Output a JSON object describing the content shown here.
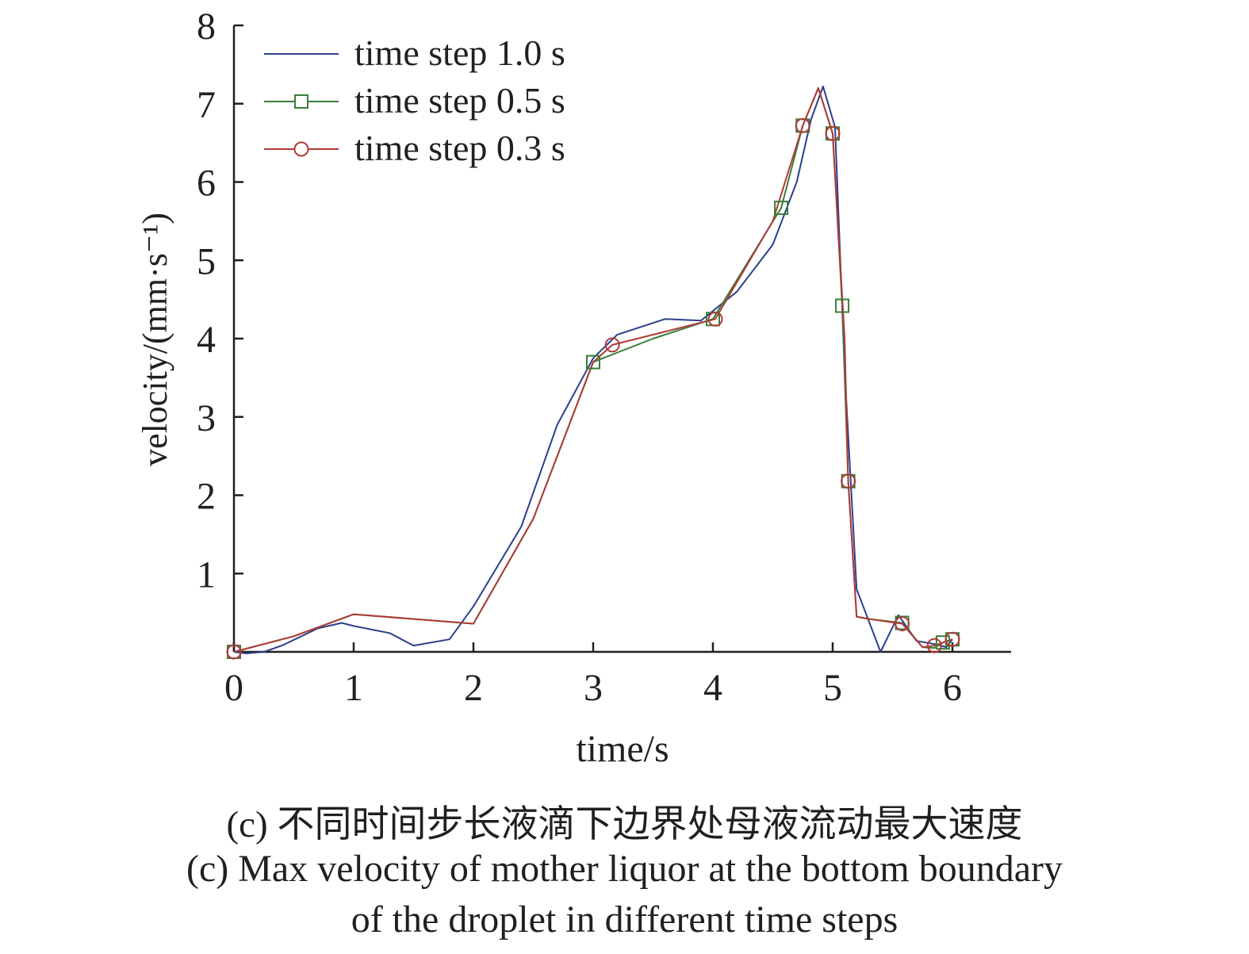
{
  "chart_data": {
    "type": "line",
    "xlabel": "time/s",
    "ylabel": "velocity/(mm·s⁻¹)",
    "xlim": [
      0,
      6.5
    ],
    "ylim": [
      0,
      8
    ],
    "x_ticks": [
      "0",
      "1",
      "2",
      "3",
      "4",
      "5",
      "6"
    ],
    "y_ticks": [
      "1",
      "2",
      "3",
      "4",
      "5",
      "6",
      "7",
      "8"
    ],
    "grid": false,
    "legend_position": "top-left",
    "series": [
      {
        "name": "time step 1.0 s",
        "color": "#2b3f8c",
        "marker": "none",
        "x": [
          0,
          0.1,
          0.25,
          0.4,
          0.7,
          0.9,
          1.0,
          1.3,
          1.5,
          1.8,
          2.0,
          2.4,
          2.7,
          3.0,
          3.2,
          3.6,
          3.9,
          4.2,
          4.5,
          4.7,
          4.82,
          4.92,
          5.02,
          5.1,
          5.2,
          5.25,
          5.3,
          5.4,
          5.55,
          5.7,
          5.85,
          5.95,
          6.0
        ],
        "y": [
          0,
          -0.02,
          0,
          0.08,
          0.3,
          0.37,
          0.33,
          0.24,
          0.08,
          0.16,
          0.58,
          1.6,
          2.9,
          3.75,
          4.05,
          4.25,
          4.23,
          4.6,
          5.2,
          6.0,
          6.8,
          7.22,
          6.7,
          3.6,
          0.8,
          0.6,
          0.4,
          0.0,
          0.47,
          0.14,
          0.1,
          0.06,
          0.16
        ]
      },
      {
        "name": "time step 0.5 s",
        "color": "#3a7d3a",
        "marker": "square",
        "marker_x": [
          0,
          3.0,
          4.0,
          4.57,
          4.75,
          5.0,
          5.08,
          5.13,
          5.58,
          5.92,
          6.0
        ],
        "marker_y": [
          0,
          3.7,
          4.25,
          5.67,
          6.72,
          6.62,
          4.42,
          2.18,
          0.37,
          0.12,
          0.16
        ],
        "x": [
          0,
          0.5,
          1.0,
          2.0,
          2.5,
          3.0,
          3.5,
          4.0,
          4.57,
          4.75,
          4.88,
          5.0,
          5.08,
          5.13,
          5.2,
          5.3,
          5.58,
          5.75,
          5.85,
          5.92,
          6.0
        ],
        "y": [
          0,
          0.2,
          0.48,
          0.36,
          1.7,
          3.7,
          4.0,
          4.25,
          5.67,
          6.72,
          7.2,
          6.62,
          4.42,
          2.18,
          0.45,
          0.42,
          0.37,
          0.06,
          0.05,
          0.12,
          0.16
        ]
      },
      {
        "name": "time step 0.3 s",
        "color": "#b03a36",
        "marker": "circle",
        "marker_x": [
          0,
          3.16,
          4.02,
          4.75,
          5.0,
          5.13,
          5.58,
          5.85,
          6.0
        ],
        "marker_y": [
          0,
          3.92,
          4.25,
          6.72,
          6.62,
          2.18,
          0.36,
          0.08,
          0.16
        ],
        "x": [
          0,
          0.5,
          1.0,
          2.0,
          2.5,
          3.0,
          3.16,
          4.02,
          4.5,
          4.75,
          4.88,
          5.0,
          5.1,
          5.13,
          5.2,
          5.3,
          5.58,
          5.75,
          5.85,
          6.0
        ],
        "y": [
          0,
          0.2,
          0.48,
          0.36,
          1.7,
          3.7,
          3.92,
          4.25,
          5.5,
          6.72,
          7.2,
          6.62,
          4.0,
          2.18,
          0.45,
          0.42,
          0.36,
          0.06,
          0.08,
          0.16
        ]
      }
    ]
  },
  "caption": {
    "zh": "(c) 不同时间步长液滴下边界处母液流动最大速度",
    "en_line1": "(c) Max velocity of mother liquor at the bottom boundary",
    "en_line2": "of the droplet in different time steps"
  }
}
